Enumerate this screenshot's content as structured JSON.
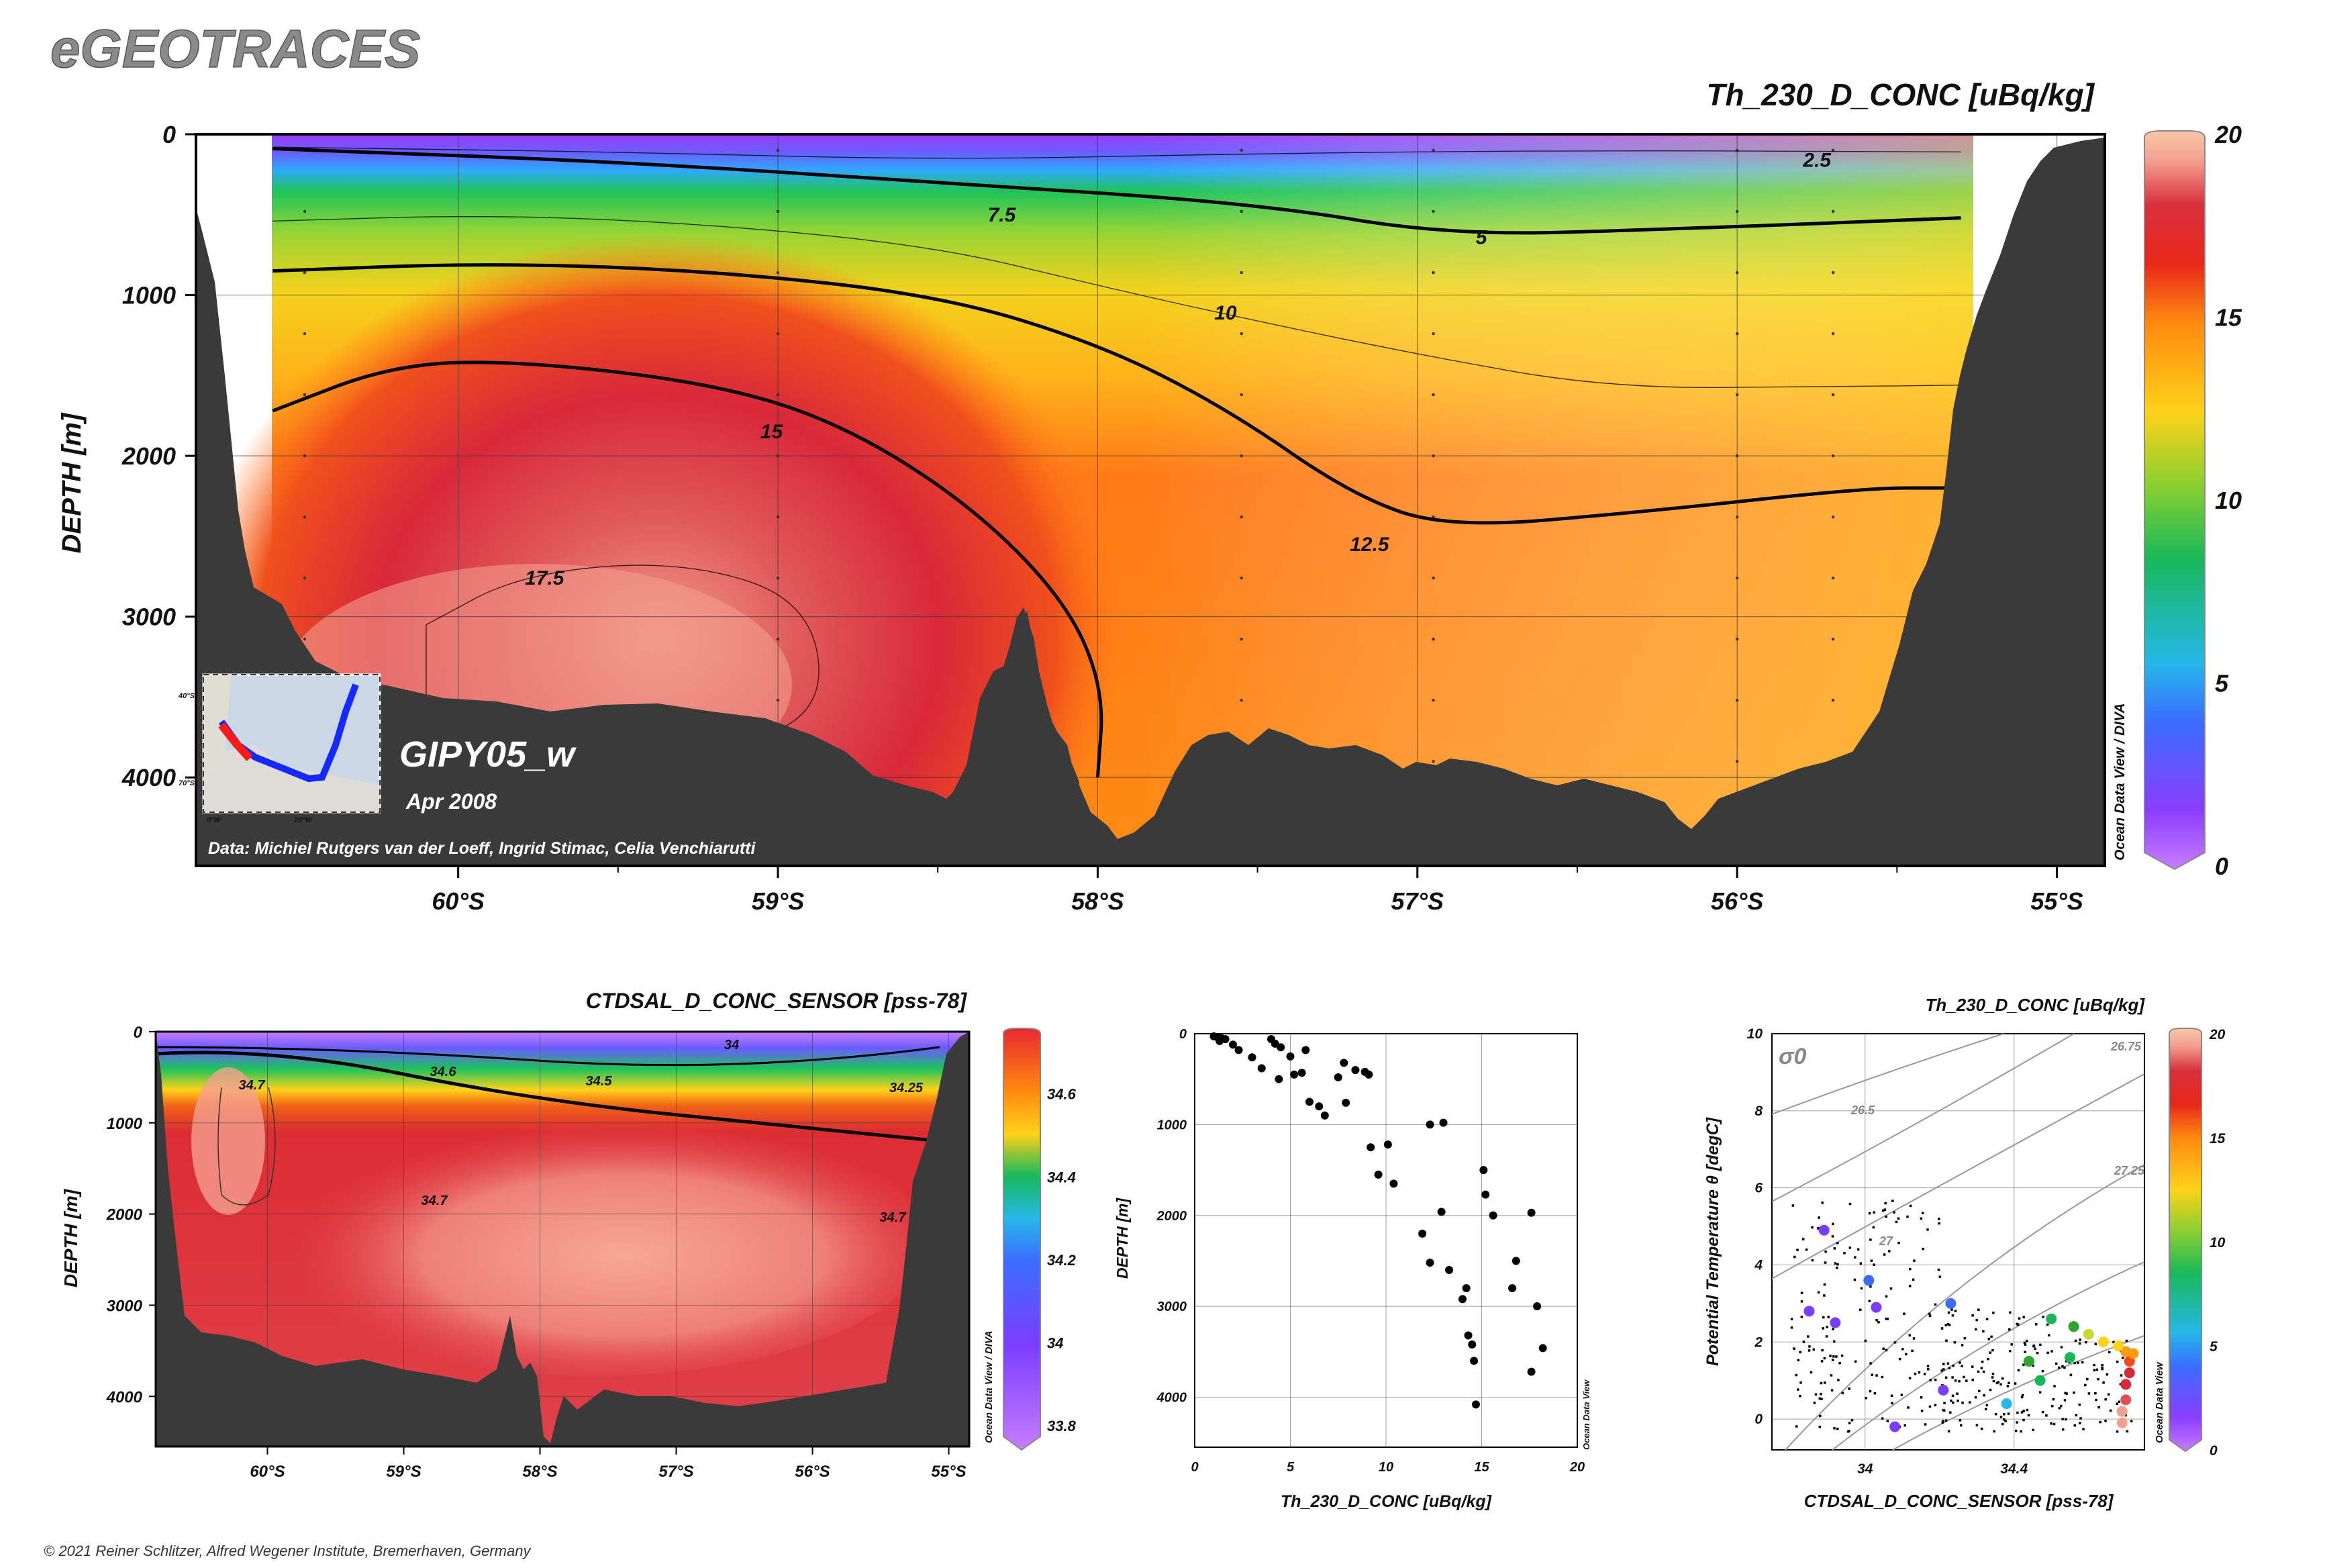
{
  "brand": "eGEOTRACES",
  "copyright": "© 2021 Reiner Schlitzer, Alfred Wegener Institute, Bremerhaven, Germany",
  "colors": {
    "land": "#3a3a3a",
    "colormap": [
      "#c77dff",
      "#7a3dff",
      "#3a6dff",
      "#25b8e8",
      "#18b85a",
      "#2fa52a",
      "#c8d830",
      "#ffd21a",
      "#ff9a10",
      "#f24a1a",
      "#d8283a",
      "#e0505a",
      "#f4a090",
      "#f8c8a8"
    ]
  },
  "chart_data": [
    {
      "id": "section_main",
      "type": "heatmap",
      "title": "Th_230_D_CONC [uBq/kg]",
      "ylabel": "DEPTH [m]",
      "xlabel": "",
      "x_ticks": [
        "60°S",
        "59°S",
        "58°S",
        "57°S",
        "56°S",
        "55°S"
      ],
      "x_tick_values": [
        60,
        59,
        58,
        57,
        56,
        55
      ],
      "xlim": [
        60.82,
        54.85
      ],
      "y_ticks": [
        "0",
        "1000",
        "2000",
        "3000",
        "4000"
      ],
      "y_tick_values": [
        0,
        1000,
        2000,
        3000,
        4000
      ],
      "ylim": [
        0,
        4550
      ],
      "colorbar": {
        "ticks": [
          "0",
          "5",
          "10",
          "15",
          "20"
        ],
        "range": [
          0,
          20
        ],
        "label": "Ocean Data View / DIVA"
      },
      "contours": [
        {
          "level": "2.5",
          "points": [
            [
              60.58,
              80
            ],
            [
              59.5,
              110
            ],
            [
              58.5,
              160
            ],
            [
              57.5,
              120
            ],
            [
              56.5,
              100
            ],
            [
              55.3,
              110
            ]
          ]
        },
        {
          "level": "5",
          "points": [
            [
              60.58,
              90
            ],
            [
              59.5,
              170
            ],
            [
              58.5,
              300
            ],
            [
              57.5,
              430
            ],
            [
              56.9,
              630
            ],
            [
              56.2,
              590
            ],
            [
              55.3,
              520
            ]
          ]
        },
        {
          "level": "7.5",
          "points": [
            [
              60.58,
              540
            ],
            [
              59.9,
              500
            ],
            [
              59.2,
              560
            ],
            [
              58.5,
              700
            ],
            [
              58.0,
              940
            ],
            [
              57.6,
              1120
            ],
            [
              57.0,
              1370
            ],
            [
              56.4,
              1580
            ],
            [
              55.7,
              1570
            ],
            [
              55.3,
              1560
            ]
          ]
        },
        {
          "level": "10",
          "points": [
            [
              60.58,
              850
            ],
            [
              59.9,
              800
            ],
            [
              59.2,
              850
            ],
            [
              58.5,
              1000
            ],
            [
              58.0,
              1300
            ],
            [
              57.6,
              1700
            ],
            [
              57.2,
              2250
            ],
            [
              56.9,
              2450
            ],
            [
              56.3,
              2350
            ],
            [
              55.6,
              2200
            ],
            [
              55.35,
              2200
            ]
          ]
        },
        {
          "level": "15",
          "points": [
            [
              60.58,
              1720
            ],
            [
              60.2,
              1430
            ],
            [
              59.8,
              1410
            ],
            [
              59.2,
              1550
            ],
            [
              58.8,
              1800
            ],
            [
              58.4,
              2300
            ],
            [
              58.1,
              2900
            ],
            [
              57.98,
              3450
            ],
            [
              58.0,
              4000
            ]
          ]
        },
        {
          "level": "17.5",
          "points": [
            [
              60.1,
              3050
            ],
            [
              59.8,
              2730
            ],
            [
              59.3,
              2650
            ],
            [
              58.9,
              2900
            ],
            [
              58.85,
              3600
            ],
            [
              59.2,
              3850
            ],
            [
              60.1,
              3650
            ]
          ]
        }
      ],
      "contour_labels": [
        {
          "text": "2.5",
          "x": 55.75,
          "y": 160
        },
        {
          "text": "5",
          "x": 56.8,
          "y": 640
        },
        {
          "text": "7.5",
          "x": 58.3,
          "y": 500
        },
        {
          "text": "10",
          "x": 57.6,
          "y": 1110
        },
        {
          "text": "12.5",
          "x": 57.15,
          "y": 2550
        },
        {
          "text": "15",
          "x": 59.02,
          "y": 1850
        },
        {
          "text": "17.5",
          "x": 59.73,
          "y": 2760
        }
      ],
      "sample_stations": [
        60.48,
        59.0,
        57.55,
        56.95,
        56.0,
        55.7
      ],
      "section_name": "GIPY05_w",
      "date": "Apr 2008",
      "credit": "Data: Michiel Rutgers van der Loeff, Ingrid Stimac, Celia Venchiarutti",
      "inset_map": {
        "lat_labels": [
          "40°S",
          "70°S"
        ],
        "lon_labels": [
          "0°W",
          "20°W"
        ]
      }
    },
    {
      "id": "section_salinity",
      "type": "heatmap",
      "title": "CTDSAL_D_CONC_SENSOR [pss-78]",
      "ylabel": "DEPTH [m]",
      "x_ticks": [
        "60°S",
        "59°S",
        "58°S",
        "57°S",
        "56°S",
        "55°S"
      ],
      "x_tick_values": [
        60,
        59,
        58,
        57,
        56,
        55
      ],
      "y_ticks": [
        "0",
        "1000",
        "2000",
        "3000",
        "4000"
      ],
      "y_tick_values": [
        0,
        1000,
        2000,
        3000,
        4000
      ],
      "ylim": [
        0,
        4550
      ],
      "colorbar": {
        "ticks": [
          "34.6",
          "34.4",
          "34.2",
          "34",
          "33.8"
        ],
        "range": [
          33.75,
          34.75
        ],
        "label": "Ocean Data View / DIVA"
      },
      "contour_labels": [
        "34",
        "34.6",
        "34.5",
        "34.25",
        "34.7",
        "34.7",
        "34.7"
      ]
    },
    {
      "id": "profile_scatter",
      "type": "scatter",
      "xlabel": "Th_230_D_CONC [uBq/kg]",
      "ylabel": "DEPTH [m]",
      "xlim": [
        0,
        20
      ],
      "ylim": [
        0,
        4550
      ],
      "x_ticks": [
        "0",
        "5",
        "10",
        "15",
        "20"
      ],
      "x_tick_values": [
        0,
        5,
        10,
        15,
        20
      ],
      "y_ticks": [
        "0",
        "1000",
        "2000",
        "3000",
        "4000"
      ],
      "y_tick_values": [
        0,
        1000,
        2000,
        3000,
        4000
      ],
      "side_label": "Ocean Data View",
      "points": [
        [
          1.0,
          30
        ],
        [
          1.2,
          40
        ],
        [
          1.4,
          50
        ],
        [
          1.6,
          60
        ],
        [
          1.3,
          80
        ],
        [
          2.0,
          120
        ],
        [
          2.3,
          180
        ],
        [
          3.0,
          260
        ],
        [
          3.5,
          380
        ],
        [
          4.0,
          60
        ],
        [
          4.2,
          110
        ],
        [
          4.5,
          150
        ],
        [
          5.0,
          250
        ],
        [
          5.2,
          450
        ],
        [
          5.6,
          430
        ],
        [
          5.8,
          180
        ],
        [
          4.4,
          500
        ],
        [
          6.0,
          750
        ],
        [
          6.5,
          800
        ],
        [
          6.8,
          900
        ],
        [
          7.5,
          480
        ],
        [
          7.8,
          320
        ],
        [
          8.4,
          400
        ],
        [
          8.9,
          420
        ],
        [
          9.1,
          450
        ],
        [
          7.9,
          760
        ],
        [
          9.2,
          1250
        ],
        [
          10.1,
          1220
        ],
        [
          9.6,
          1550
        ],
        [
          10.4,
          1650
        ],
        [
          12.3,
          1000
        ],
        [
          13.0,
          980
        ],
        [
          11.9,
          2200
        ],
        [
          12.3,
          2520
        ],
        [
          12.9,
          1960
        ],
        [
          13.3,
          2600
        ],
        [
          14.0,
          2920
        ],
        [
          14.2,
          2800
        ],
        [
          14.3,
          3320
        ],
        [
          14.5,
          3420
        ],
        [
          14.6,
          3600
        ],
        [
          14.7,
          4080
        ],
        [
          15.1,
          1500
        ],
        [
          15.2,
          1770
        ],
        [
          15.6,
          2000
        ],
        [
          16.8,
          2500
        ],
        [
          16.6,
          2800
        ],
        [
          17.6,
          1970
        ],
        [
          17.9,
          3000
        ],
        [
          17.6,
          3720
        ],
        [
          18.2,
          3460
        ]
      ]
    },
    {
      "id": "ts_diagram",
      "type": "scatter",
      "title": "Th_230_D_CONC [uBq/kg]",
      "xlabel": "CTDSAL_D_CONC_SENSOR [pss-78]",
      "ylabel": "Potential Temperature θ [degC]",
      "xlim": [
        33.75,
        34.75
      ],
      "ylim": [
        -0.8,
        10
      ],
      "x_ticks": [
        "34",
        "34.4"
      ],
      "x_tick_values": [
        34,
        34.4
      ],
      "y_ticks": [
        "0",
        "2",
        "4",
        "6",
        "8",
        "10"
      ],
      "y_tick_values": [
        0,
        2,
        4,
        6,
        8,
        10
      ],
      "density_symbol": "σ0",
      "isopycnal_labels": [
        "26.75",
        "26.5",
        "27",
        "27.25"
      ],
      "colorbar": {
        "ticks": [
          "0",
          "5",
          "10",
          "15",
          "20"
        ],
        "range": [
          0,
          20
        ],
        "label": "Ocean Data View"
      },
      "colored_points": [
        [
          34.69,
          -0.1,
          18.5
        ],
        [
          34.69,
          0.2,
          18
        ],
        [
          34.7,
          0.5,
          17.5
        ],
        [
          34.7,
          0.9,
          16
        ],
        [
          34.71,
          1.2,
          15.5
        ],
        [
          34.71,
          1.5,
          14.5
        ],
        [
          34.72,
          1.7,
          13
        ],
        [
          34.7,
          1.75,
          12.5
        ],
        [
          34.68,
          1.9,
          11
        ],
        [
          34.64,
          2.0,
          10.5
        ],
        [
          34.6,
          2.2,
          9
        ],
        [
          34.56,
          2.4,
          7
        ],
        [
          34.5,
          2.6,
          6
        ],
        [
          34.47,
          1.0,
          5.5
        ],
        [
          34.38,
          0.4,
          4
        ],
        [
          34.21,
          0.75,
          2
        ],
        [
          34.23,
          3.0,
          3.5
        ],
        [
          34.01,
          3.6,
          2.5
        ],
        [
          34.03,
          2.9,
          2
        ],
        [
          33.92,
          2.5,
          1.5
        ],
        [
          33.85,
          2.8,
          1
        ],
        [
          33.89,
          4.9,
          1.2
        ],
        [
          34.08,
          -0.2,
          0.8
        ],
        [
          34.55,
          1.6,
          6.5
        ],
        [
          34.44,
          1.5,
          8
        ]
      ]
    }
  ]
}
